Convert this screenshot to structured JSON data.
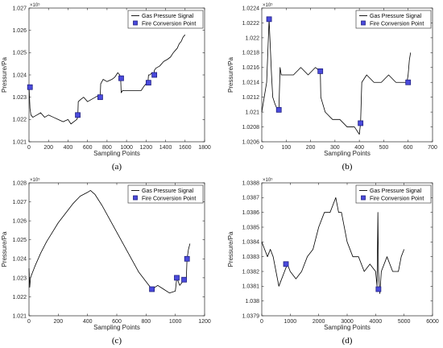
{
  "figure": {
    "colors": {
      "line": "#000000",
      "marker_fill": "#4a4adc",
      "marker_edge": "#202080",
      "axis": "#262626"
    }
  },
  "chart_data": [
    {
      "type": "line",
      "caption": "(a)",
      "xlabel": "Sampling Points",
      "ylabel": "Pressure/Pa",
      "y_exponent": "×10⁵",
      "xlim": [
        0,
        1800
      ],
      "ylim": [
        1.021,
        1.027
      ],
      "xticks": [
        "0",
        "200",
        "400",
        "600",
        "800",
        "1000",
        "1200",
        "1400",
        "1600",
        "1800"
      ],
      "yticks": [
        "1.021",
        "1.022",
        "1.023",
        "1.024",
        "1.025",
        "1.026",
        "1.027"
      ],
      "legend_placement": "top-right",
      "legend": [
        "Gas Pressure Signal",
        "Fire Conversion Point"
      ],
      "series": [
        {
          "name": "Gas Pressure Signal",
          "x": [
            0,
            10,
            20,
            40,
            80,
            120,
            160,
            200,
            250,
            300,
            350,
            400,
            430,
            460,
            490,
            500,
            505,
            530,
            560,
            600,
            640,
            680,
            720,
            730,
            735,
            760,
            800,
            850,
            880,
            910,
            930,
            940,
            945,
            960,
            1000,
            1050,
            1100,
            1150,
            1180,
            1200,
            1220,
            1225,
            1240,
            1260,
            1280,
            1285,
            1300,
            1340,
            1380,
            1420,
            1450,
            1480,
            1500,
            1520,
            1540,
            1560,
            1580,
            1600
          ],
          "y": [
            1.0235,
            1.0225,
            1.0222,
            1.0221,
            1.0222,
            1.0223,
            1.0221,
            1.0222,
            1.0221,
            1.022,
            1.0219,
            1.022,
            1.0218,
            1.0219,
            1.022,
            1.0221,
            1.0228,
            1.0229,
            1.023,
            1.0228,
            1.0229,
            1.023,
            1.0231,
            1.023,
            1.0236,
            1.0238,
            1.0237,
            1.0238,
            1.0239,
            1.0241,
            1.024,
            1.0238,
            1.0232,
            1.0233,
            1.0233,
            1.0233,
            1.0233,
            1.0233,
            1.0235,
            1.0236,
            1.0237,
            1.024,
            1.024,
            1.0241,
            1.024,
            1.0242,
            1.0243,
            1.0244,
            1.0246,
            1.0247,
            1.0248,
            1.025,
            1.0251,
            1.0252,
            1.0254,
            1.0255,
            1.0257,
            1.0258
          ]
        },
        {
          "name": "Fire Conversion Point",
          "x": [
            10,
            500,
            730,
            945,
            1225,
            1285
          ],
          "y": [
            1.02345,
            1.0222,
            1.023,
            1.02385,
            1.02365,
            1.024
          ]
        }
      ]
    },
    {
      "type": "line",
      "caption": "(b)",
      "xlabel": "Sampling Points",
      "ylabel": "Pressure/Pa",
      "y_exponent": "×10⁵",
      "xlim": [
        0,
        700
      ],
      "ylim": [
        1.0206,
        1.0224
      ],
      "xticks": [
        "0",
        "100",
        "200",
        "300",
        "400",
        "500",
        "600",
        "700"
      ],
      "yticks": [
        "1.0206",
        "1.0208",
        "1.021",
        "1.0212",
        "1.0214",
        "1.0216",
        "1.0218",
        "1.022",
        "1.0222",
        "1.0224"
      ],
      "legend_placement": "top-right",
      "legend": [
        "Gas Pressure Signal",
        "Fire Conversion Point"
      ],
      "series": [
        {
          "name": "Gas Pressure Signal",
          "x": [
            0,
            20,
            30,
            40,
            45,
            55,
            65,
            70,
            75,
            80,
            100,
            130,
            160,
            190,
            220,
            240,
            242,
            260,
            290,
            320,
            350,
            380,
            400,
            405,
            410,
            430,
            460,
            490,
            520,
            550,
            580,
            595,
            600,
            605,
            610
          ],
          "y": [
            1.021,
            1.0214,
            1.02225,
            1.0215,
            1.0212,
            1.0211,
            1.02103,
            1.021,
            1.0216,
            1.0215,
            1.0215,
            1.0215,
            1.0216,
            1.0215,
            1.0216,
            1.02155,
            1.0212,
            1.021,
            1.0209,
            1.0209,
            1.0208,
            1.0208,
            1.0207,
            1.02085,
            1.0214,
            1.0215,
            1.0214,
            1.0214,
            1.0215,
            1.0214,
            1.0214,
            1.0214,
            1.0215,
            1.0217,
            1.0218
          ]
        },
        {
          "name": "Fire Conversion Point",
          "x": [
            30,
            70,
            240,
            405,
            600
          ],
          "y": [
            1.02225,
            1.02103,
            1.02155,
            1.02085,
            1.0214
          ]
        }
      ]
    },
    {
      "type": "line",
      "caption": "(c)",
      "xlabel": "Sampling Points",
      "ylabel": "Pressure/Pa",
      "y_exponent": "×10⁵",
      "xlim": [
        0,
        1200
      ],
      "ylim": [
        1.021,
        1.028
      ],
      "xticks": [
        "0",
        "200",
        "400",
        "600",
        "800",
        "1000",
        "1200"
      ],
      "yticks": [
        "1.021",
        "1.022",
        "1.023",
        "1.024",
        "1.025",
        "1.026",
        "1.027",
        "1.028"
      ],
      "legend_placement": "top-right",
      "legend": [
        "Gas Pressure Signal",
        "Fire Conversion Point"
      ],
      "series": [
        {
          "name": "Gas Pressure Signal",
          "x": [
            0,
            5,
            10,
            20,
            40,
            80,
            120,
            160,
            200,
            250,
            300,
            350,
            400,
            420,
            450,
            500,
            550,
            600,
            650,
            700,
            750,
            800,
            840,
            880,
            920,
            960,
            1000,
            1010,
            1030,
            1060,
            1075,
            1080,
            1090,
            1100
          ],
          "y": [
            1.0235,
            1.0225,
            1.023,
            1.0232,
            1.0236,
            1.0243,
            1.0249,
            1.0254,
            1.0259,
            1.0264,
            1.0269,
            1.0273,
            1.0275,
            1.0276,
            1.0274,
            1.0268,
            1.0261,
            1.0254,
            1.0247,
            1.024,
            1.0233,
            1.0228,
            1.0224,
            1.0226,
            1.0224,
            1.0222,
            1.0223,
            1.023,
            1.0226,
            1.0229,
            1.0229,
            1.024,
            1.0245,
            1.0248
          ]
        },
        {
          "name": "Fire Conversion Point",
          "x": [
            840,
            1010,
            1060,
            1080
          ],
          "y": [
            1.0224,
            1.023,
            1.0229,
            1.024
          ]
        }
      ]
    },
    {
      "type": "line",
      "caption": "(d)",
      "xlabel": "Sampling Points",
      "ylabel": "Pressure/Pa",
      "y_exponent": "×10⁵",
      "xlim": [
        0,
        6000
      ],
      "ylim": [
        1.0379,
        1.0388
      ],
      "xticks": [
        "0",
        "1000",
        "2000",
        "3000",
        "4000",
        "5000",
        "6000"
      ],
      "yticks": [
        "1.0379",
        "1.038",
        "1.0381",
        "1.0382",
        "1.0383",
        "1.0384",
        "1.0385",
        "1.0386",
        "1.0387",
        "1.0388"
      ],
      "legend_placement": "top-right",
      "legend": [
        "Gas Pressure Signal",
        "Fire Conversion Point"
      ],
      "series": [
        {
          "name": "Gas Pressure Signal",
          "x": [
            0,
            100,
            200,
            300,
            400,
            500,
            600,
            700,
            800,
            900,
            1000,
            1200,
            1400,
            1600,
            1800,
            2000,
            2200,
            2400,
            2600,
            2700,
            2800,
            3000,
            3200,
            3400,
            3600,
            3800,
            4000,
            4050,
            4080,
            4100,
            4150,
            4200,
            4400,
            4600,
            4800,
            4900,
            5000
          ],
          "y": [
            1.0384,
            1.03835,
            1.0383,
            1.03835,
            1.0383,
            1.0382,
            1.0381,
            1.03815,
            1.0382,
            1.03825,
            1.0382,
            1.03815,
            1.0382,
            1.0383,
            1.03835,
            1.0385,
            1.0386,
            1.0386,
            1.0387,
            1.0386,
            1.0386,
            1.0384,
            1.0383,
            1.0383,
            1.0382,
            1.03825,
            1.0382,
            1.0381,
            1.0386,
            1.0382,
            1.03805,
            1.0382,
            1.0383,
            1.0382,
            1.0382,
            1.0383,
            1.03835
          ]
        },
        {
          "name": "Fire Conversion Point",
          "x": [
            850,
            4100
          ],
          "y": [
            1.03825,
            1.03808
          ]
        }
      ]
    }
  ]
}
